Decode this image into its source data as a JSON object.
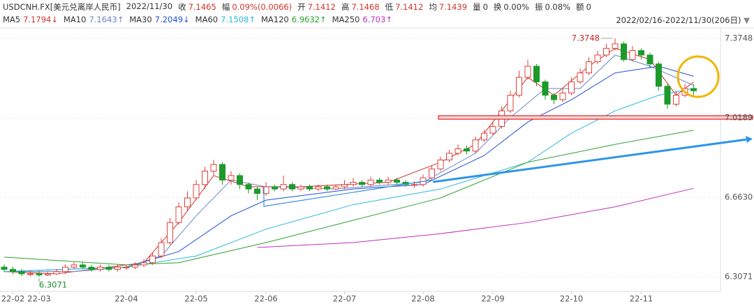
{
  "quote": {
    "symbol": "USDCNH.FX[美元兑离岸人民币]",
    "date": "2022/11/30",
    "fields": [
      {
        "label": "收",
        "value": "7.1465",
        "color": "#d0342c"
      },
      {
        "label": "幅",
        "value": "0.09%(0.0066)",
        "color": "#d0342c"
      },
      {
        "label": "开",
        "value": "7.1412",
        "color": "#d0342c"
      },
      {
        "label": "高",
        "value": "7.1468",
        "color": "#d0342c"
      },
      {
        "label": "低",
        "value": "7.1412",
        "color": "#d0342c"
      },
      {
        "label": "均",
        "value": "7.1439",
        "color": "#d0342c"
      },
      {
        "label": "量",
        "value": "0",
        "color": "#333333"
      },
      {
        "label": "换",
        "value": "0.00%",
        "color": "#333333"
      },
      {
        "label": "振",
        "value": "0.08%",
        "color": "#333333"
      },
      {
        "label": "额",
        "value": "0",
        "color": "#333333"
      }
    ]
  },
  "range": "2022/02/16-2022/11/30(206日)",
  "chart_data": {
    "type": "candlestick",
    "categories": [
      null,
      "22-02",
      null,
      null,
      "22-03",
      null,
      null,
      null,
      null,
      null,
      null,
      null,
      null,
      null,
      "22-04",
      null,
      null,
      null,
      null,
      null,
      null,
      null,
      "22-05",
      null,
      null,
      null,
      null,
      null,
      null,
      null,
      "22-06",
      null,
      null,
      null,
      null,
      null,
      null,
      null,
      null,
      "22-07",
      null,
      null,
      null,
      null,
      null,
      null,
      null,
      null,
      "22-08",
      null,
      null,
      null,
      null,
      null,
      null,
      null,
      "22-09",
      null,
      null,
      null,
      null,
      null,
      null,
      null,
      null,
      "22-10",
      null,
      null,
      null,
      null,
      null,
      null,
      null,
      "22-11",
      null,
      null,
      null,
      null,
      null,
      null
    ],
    "open": [
      6.35,
      6.34,
      6.33,
      6.32,
      6.32,
      6.315,
      6.32,
      6.33,
      6.35,
      6.36,
      6.35,
      6.34,
      6.35,
      6.34,
      6.35,
      6.35,
      6.36,
      6.37,
      6.4,
      6.46,
      6.55,
      6.62,
      6.66,
      6.72,
      6.78,
      6.81,
      6.74,
      6.76,
      6.72,
      6.7,
      6.68,
      6.71,
      6.7,
      6.72,
      6.7,
      6.71,
      6.7,
      6.71,
      6.7,
      6.71,
      6.72,
      6.73,
      6.72,
      6.74,
      6.73,
      6.74,
      6.73,
      6.72,
      6.72,
      6.75,
      6.79,
      6.83,
      6.86,
      6.88,
      6.87,
      6.92,
      6.95,
      6.98,
      7.05,
      7.12,
      7.2,
      7.25,
      7.18,
      7.12,
      7.1,
      7.13,
      7.18,
      7.22,
      7.27,
      7.3,
      7.33,
      7.35,
      7.28,
      7.32,
      7.3,
      7.26,
      7.16,
      7.08,
      7.12,
      7.15
    ],
    "high": [
      6.362,
      6.352,
      6.342,
      6.332,
      6.332,
      6.332,
      6.342,
      6.362,
      6.372,
      6.372,
      6.36,
      6.362,
      6.36,
      6.362,
      6.362,
      6.372,
      6.385,
      6.415,
      6.48,
      6.57,
      6.64,
      6.69,
      6.74,
      6.8,
      6.83,
      6.82,
      6.78,
      6.77,
      6.73,
      6.71,
      6.73,
      6.72,
      6.76,
      6.73,
      6.72,
      6.72,
      6.72,
      6.72,
      6.72,
      6.74,
      6.75,
      6.74,
      6.755,
      6.75,
      6.755,
      6.75,
      6.74,
      6.735,
      6.765,
      6.805,
      6.845,
      6.875,
      6.9,
      6.895,
      6.935,
      6.965,
      7.0,
      7.07,
      7.14,
      7.23,
      7.28,
      7.26,
      7.19,
      7.13,
      7.15,
      7.2,
      7.24,
      7.29,
      7.32,
      7.35,
      7.3748,
      7.36,
      7.34,
      7.33,
      7.31,
      7.27,
      7.17,
      7.14,
      7.17,
      7.17
    ],
    "low": [
      6.328,
      6.318,
      6.31,
      6.31,
      6.3071,
      6.31,
      6.315,
      6.32,
      6.34,
      6.34,
      6.33,
      6.33,
      6.33,
      6.33,
      6.338,
      6.34,
      6.35,
      6.36,
      6.39,
      6.45,
      6.54,
      6.6,
      6.65,
      6.7,
      6.76,
      6.72,
      6.72,
      6.7,
      6.68,
      6.65,
      6.67,
      6.69,
      6.69,
      6.69,
      6.69,
      6.69,
      6.69,
      6.69,
      6.695,
      6.7,
      6.71,
      6.71,
      6.71,
      6.72,
      6.72,
      6.72,
      6.71,
      6.705,
      6.71,
      6.74,
      6.78,
      6.82,
      6.85,
      6.855,
      6.86,
      6.91,
      6.94,
      6.97,
      7.04,
      7.11,
      7.19,
      7.16,
      7.1,
      7.08,
      7.09,
      7.12,
      7.17,
      7.21,
      7.26,
      7.29,
      7.32,
      7.27,
      7.27,
      7.28,
      7.24,
      7.14,
      7.06,
      7.07,
      7.11,
      7.12
    ],
    "close": [
      6.34,
      6.33,
      6.32,
      6.32,
      6.315,
      6.32,
      6.33,
      6.35,
      6.36,
      6.35,
      6.34,
      6.35,
      6.34,
      6.35,
      6.35,
      6.36,
      6.37,
      6.4,
      6.46,
      6.55,
      6.62,
      6.66,
      6.72,
      6.78,
      6.81,
      6.74,
      6.76,
      6.72,
      6.7,
      6.68,
      6.71,
      6.7,
      6.72,
      6.7,
      6.71,
      6.7,
      6.71,
      6.7,
      6.71,
      6.72,
      6.73,
      6.72,
      6.74,
      6.73,
      6.74,
      6.73,
      6.72,
      6.72,
      6.75,
      6.79,
      6.83,
      6.86,
      6.88,
      6.87,
      6.92,
      6.95,
      6.98,
      7.05,
      7.12,
      7.2,
      7.25,
      7.18,
      7.12,
      7.1,
      7.13,
      7.18,
      7.22,
      7.27,
      7.3,
      7.33,
      7.35,
      7.28,
      7.32,
      7.3,
      7.26,
      7.16,
      7.08,
      7.12,
      7.15,
      7.14
    ],
    "up_color": "#e0403a",
    "down_color": "#1c9a2c",
    "max_label_index": 70,
    "min_label_index": 4,
    "series": [
      {
        "name": "MA5",
        "color": "#d0342c",
        "last": 7.1794,
        "trend": "↓",
        "x": [
          0,
          6,
          12,
          16,
          20,
          24,
          28,
          34,
          44,
          50,
          54,
          58,
          60,
          63,
          67,
          70,
          74,
          77,
          79
        ],
        "values": [
          6.33,
          6.32,
          6.35,
          6.37,
          6.55,
          6.76,
          6.71,
          6.71,
          6.73,
          6.82,
          6.9,
          7.1,
          7.2,
          7.12,
          7.25,
          7.33,
          7.28,
          7.12,
          7.179
        ]
      },
      {
        "name": "MA10",
        "color": "#6b86c9",
        "last": 7.1643,
        "trend": "↑",
        "x": [
          0,
          8,
          14,
          18,
          22,
          26,
          30,
          38,
          48,
          54,
          58,
          62,
          66,
          70,
          74,
          79
        ],
        "values": [
          6.33,
          6.33,
          6.35,
          6.4,
          6.58,
          6.74,
          6.71,
          6.7,
          6.73,
          6.86,
          7.02,
          7.15,
          7.15,
          7.3,
          7.25,
          7.164
        ]
      },
      {
        "name": "MA30",
        "color": "#2050d8",
        "last": 7.2049,
        "trend": "↓",
        "x": [
          0,
          14,
          20,
          26,
          30,
          40,
          48,
          55,
          60,
          65,
          70,
          75,
          79
        ],
        "values": [
          6.33,
          6.35,
          6.42,
          6.58,
          6.65,
          6.7,
          6.72,
          6.85,
          7.0,
          7.1,
          7.22,
          7.25,
          7.205
        ]
      },
      {
        "name": "MA60",
        "color": "#2bb7de",
        "last": 7.1508,
        "trend": "↑",
        "x": [
          0,
          14,
          22,
          30,
          40,
          50,
          60,
          65,
          70,
          75,
          79
        ],
        "values": [
          6.33,
          6.35,
          6.4,
          6.52,
          6.63,
          6.7,
          6.82,
          6.95,
          7.05,
          7.12,
          7.151
        ]
      },
      {
        "name": "MA120",
        "color": "#2ea02e",
        "last": 6.9632,
        "trend": "↑",
        "x": [
          0,
          14,
          20,
          30,
          40,
          50,
          60,
          70,
          79
        ],
        "values": [
          6.395,
          6.36,
          6.37,
          6.46,
          6.56,
          6.66,
          6.82,
          6.9,
          6.963
        ]
      },
      {
        "name": "MA250",
        "color": "#c02fc0",
        "last": 6.703,
        "trend": "↑",
        "x": [
          29,
          40,
          50,
          60,
          70,
          79
        ],
        "values": [
          6.438,
          6.46,
          6.5,
          6.55,
          6.62,
          6.703
        ]
      }
    ],
    "ylim": [
      6.2415,
      7.406
    ],
    "yticks": [
      6.3071,
      {
        "value": 6.663,
        "label": "6.6630"
      },
      7.0189,
      7.3748
    ],
    "grid": true
  }
}
